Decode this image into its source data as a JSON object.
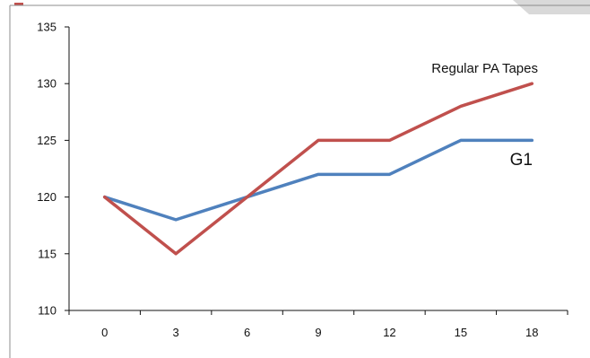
{
  "chart_data": {
    "type": "line",
    "categories": [
      "0",
      "3",
      "6",
      "9",
      "12",
      "15",
      "18"
    ],
    "series": [
      {
        "name": "Regular PA Tapes",
        "color": "#c0504d",
        "values": [
          120,
          115,
          120,
          125,
          125,
          128,
          130
        ]
      },
      {
        "name": "G1",
        "color": "#4f81bd",
        "values": [
          120,
          118,
          120,
          122,
          122,
          125,
          125
        ]
      }
    ],
    "yticks": [
      "110",
      "115",
      "120",
      "125",
      "130",
      "135"
    ],
    "ylim": [
      110,
      135
    ],
    "grid": false,
    "legend": "inline labels at line ends",
    "xlabel": "",
    "ylabel": ""
  }
}
